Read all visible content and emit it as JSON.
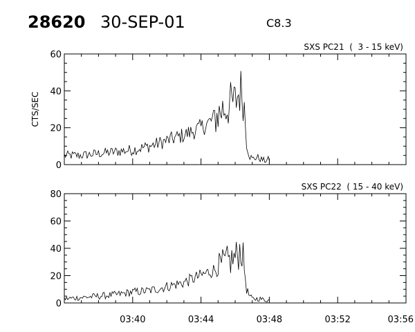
{
  "header": {
    "event_id": "28620",
    "date": "30-SEP-01",
    "flare_class": "C8.3"
  },
  "chart_data": [
    {
      "type": "line",
      "title": "SXS PC21  (  3 - 15 keV)",
      "ylabel": "CTS/SEC",
      "xlabel": "",
      "xlim": [
        "03:36",
        "03:56"
      ],
      "ylim": [
        0,
        60
      ],
      "yticks": [
        0,
        20,
        40,
        60
      ],
      "xticks": [
        "03:40",
        "03:44",
        "03:48",
        "03:52",
        "03:56"
      ],
      "grid": false,
      "series": [
        {
          "x": [
            "03:36:00",
            "03:37:00",
            "03:38:00",
            "03:39:00",
            "03:40:00",
            "03:41:00",
            "03:42:00",
            "03:43:00",
            "03:44:00",
            "03:44:30",
            "03:45:00",
            "03:45:15",
            "03:45:30",
            "03:45:45",
            "03:46:00",
            "03:46:10",
            "03:46:20",
            "03:46:30",
            "03:46:40",
            "03:46:50",
            "03:47:00",
            "03:47:15",
            "03:47:30",
            "03:47:45",
            "03:48:00"
          ],
          "values": [
            5,
            5,
            6,
            7,
            8,
            10,
            13,
            16,
            20,
            23,
            27,
            30,
            31,
            33,
            34,
            38,
            40,
            36,
            12,
            5,
            3,
            4,
            3,
            2,
            3
          ]
        }
      ]
    },
    {
      "type": "line",
      "title": "SXS PC22  ( 15 - 40 keV)",
      "ylabel": "",
      "xlabel": "",
      "xlim": [
        "03:36",
        "03:56"
      ],
      "ylim": [
        0,
        80
      ],
      "yticks": [
        0,
        20,
        40,
        60,
        80
      ],
      "xticks": [
        "03:40",
        "03:44",
        "03:48",
        "03:52",
        "03:56"
      ],
      "grid": false,
      "series": [
        {
          "x": [
            "03:36:00",
            "03:37:00",
            "03:38:00",
            "03:39:00",
            "03:40:00",
            "03:41:00",
            "03:42:00",
            "03:43:00",
            "03:44:00",
            "03:44:30",
            "03:45:00",
            "03:45:15",
            "03:45:30",
            "03:45:45",
            "03:46:00",
            "03:46:10",
            "03:46:20",
            "03:46:30",
            "03:46:40",
            "03:46:50",
            "03:47:00",
            "03:47:15",
            "03:47:30",
            "03:47:45",
            "03:48:00"
          ],
          "values": [
            3,
            4,
            5,
            6,
            8,
            9,
            12,
            15,
            20,
            23,
            25,
            28,
            30,
            31,
            33,
            36,
            40,
            30,
            10,
            5,
            3,
            3,
            3,
            2,
            2
          ]
        }
      ]
    }
  ]
}
